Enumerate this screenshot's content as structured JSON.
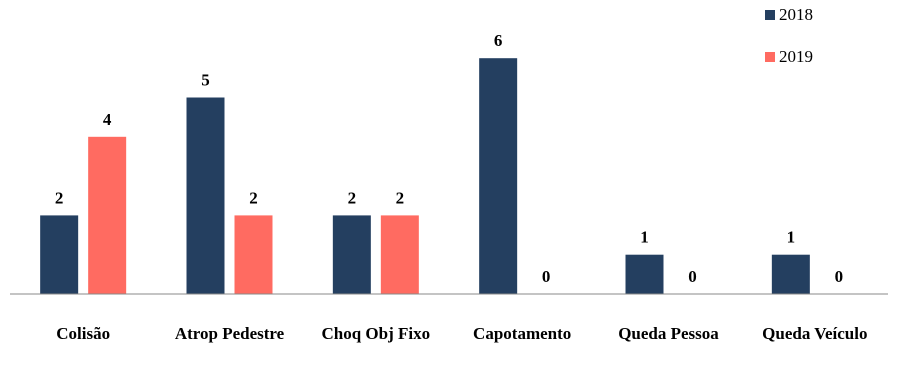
{
  "chart_data": {
    "type": "bar",
    "categories": [
      "Colisão",
      "Atrop Pedestre",
      "Choq Obj Fixo",
      "Capotamento",
      "Queda Pessoa",
      "Queda Veículo"
    ],
    "series": [
      {
        "name": "2018",
        "values": [
          2,
          5,
          2,
          6,
          1,
          1
        ],
        "color": "#243f60"
      },
      {
        "name": "2019",
        "values": [
          4,
          2,
          2,
          0,
          0,
          0
        ],
        "color": "#ff6b61"
      }
    ],
    "title": "",
    "xlabel": "",
    "ylabel": "",
    "ylim": [
      0,
      6
    ],
    "grid": false,
    "legend": "top-right",
    "data_labels": true
  }
}
